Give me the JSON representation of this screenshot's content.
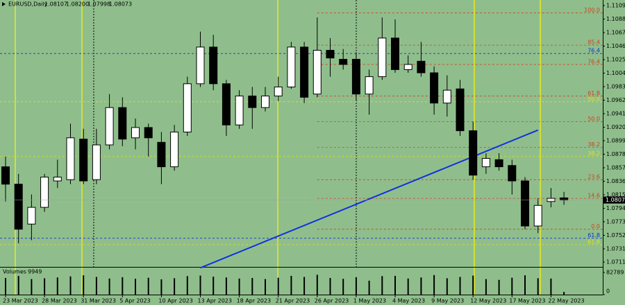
{
  "header": {
    "symbol": "EURUSD,Daily",
    "values": [
      "1.08107",
      "1.08200",
      "1.07998",
      "1.08073"
    ]
  },
  "chart_data": {
    "type": "candlestick",
    "categories": [
      "23 Mar 2023",
      null,
      null,
      "28 Mar 2023",
      null,
      null,
      "31 Mar 2023",
      null,
      null,
      "5 Apr 2023",
      null,
      null,
      "10 Apr 2023",
      null,
      null,
      "13 Apr 2023",
      null,
      null,
      "18 Apr 2023",
      null,
      null,
      "21 Apr 2023",
      null,
      null,
      "26 Apr 2023",
      null,
      null,
      "1 May 2023",
      null,
      null,
      "4 May 2023",
      null,
      null,
      "9 May 2023",
      null,
      null,
      "12 May 2023",
      null,
      null,
      "17 May 2023",
      null,
      null,
      "22 May 2023",
      null
    ],
    "ohlc": [
      [
        1.0859,
        1.0875,
        1.0805,
        1.0832
      ],
      [
        1.0832,
        1.0848,
        1.074,
        1.0762
      ],
      [
        1.077,
        1.0816,
        1.0745,
        1.0796
      ],
      [
        1.0796,
        1.0848,
        1.0789,
        1.0843
      ],
      [
        1.0837,
        1.087,
        1.0826,
        1.0843
      ],
      [
        1.0839,
        1.0926,
        1.0832,
        1.0904
      ],
      [
        1.0902,
        1.0918,
        1.0832,
        1.0837
      ],
      [
        1.0839,
        1.0918,
        1.0832,
        1.0893
      ],
      [
        1.0893,
        1.0972,
        1.0886,
        1.0951
      ],
      [
        1.0951,
        1.0967,
        1.0891,
        1.0902
      ],
      [
        1.0904,
        1.0934,
        1.0886,
        1.092
      ],
      [
        1.092,
        1.0926,
        1.0875,
        1.0904
      ],
      [
        1.0897,
        1.0913,
        1.0832,
        1.0859
      ],
      [
        1.0859,
        1.0924,
        1.0853,
        1.0913
      ],
      [
        1.0913,
        1.0999,
        1.0907,
        1.0988
      ],
      [
        1.0988,
        1.1069,
        1.0983,
        1.1045
      ],
      [
        1.1045,
        1.1064,
        1.0978,
        1.0988
      ],
      [
        1.0988,
        1.0994,
        1.0907,
        1.0924
      ],
      [
        1.0924,
        1.0978,
        1.0918,
        1.0969
      ],
      [
        1.0969,
        1.0983,
        1.0918,
        1.0951
      ],
      [
        1.0951,
        1.0983,
        1.0945,
        1.0969
      ],
      [
        1.0969,
        1.0999,
        1.0961,
        1.0983
      ],
      [
        1.0983,
        1.1053,
        1.098,
        1.1045
      ],
      [
        1.1045,
        1.1053,
        1.0958,
        1.0967
      ],
      [
        1.0972,
        1.1091,
        1.0967,
        1.104
      ],
      [
        1.104,
        1.1059,
        1.0999,
        1.1028
      ],
      [
        1.1026,
        1.1042,
        1.101,
        1.1018
      ],
      [
        1.1026,
        1.1037,
        1.0961,
        1.0972
      ],
      [
        1.0972,
        1.101,
        1.094,
        1.0999
      ],
      [
        1.0999,
        1.1091,
        1.0994,
        1.1059
      ],
      [
        1.1059,
        1.1088,
        1.1005,
        1.101
      ],
      [
        1.101,
        1.1032,
        1.1005,
        1.1018
      ],
      [
        1.1023,
        1.1053,
        1.0999,
        1.1005
      ],
      [
        1.1005,
        1.1015,
        1.094,
        1.0958
      ],
      [
        1.0958,
        1.1001,
        1.0937,
        1.0978
      ],
      [
        1.098,
        1.0994,
        1.0907,
        1.0915
      ],
      [
        1.0915,
        1.0929,
        1.0839,
        1.0846
      ],
      [
        1.0859,
        1.088,
        1.0848,
        1.0872
      ],
      [
        1.087,
        1.088,
        1.0853,
        1.0859
      ],
      [
        1.0861,
        1.087,
        1.0816,
        1.0837
      ],
      [
        1.0837,
        1.0843,
        1.0762,
        1.0767
      ],
      [
        1.0767,
        1.081,
        1.0756,
        1.0799
      ],
      [
        1.0805,
        1.0826,
        1.0796,
        1.081
      ],
      [
        1.08107,
        1.082,
        1.07998,
        1.08073
      ]
    ],
    "ylim": [
      1.07035,
      1.11181
    ],
    "yticks": [
      1.11095,
      1.10885,
      1.10675,
      1.10465,
      1.10255,
      1.10045,
      1.09835,
      1.09625,
      1.09415,
      1.09205,
      1.08995,
      1.08785,
      1.08575,
      1.08365,
      1.08155,
      1.07945,
      1.07735,
      1.07525,
      1.07315,
      {
        "value": 1.0711,
        "label": "1.07110"
      }
    ],
    "levels": [
      {
        "label": "100.0",
        "price": 1.1098,
        "color": "#d04020"
      },
      {
        "label": "85.4",
        "price": 1.1048,
        "color": "#d04020"
      },
      {
        "label": "76.4",
        "price": 1.1035,
        "color": "#1030d0"
      },
      {
        "label": "76.4",
        "price": 1.1018,
        "color": "#d04020"
      },
      {
        "label": "61.8",
        "price": 1.0969,
        "color": "#d04020"
      },
      {
        "label": "50.0",
        "price": 1.096,
        "color": "#e0e020"
      },
      {
        "label": "50.0",
        "price": 1.0929,
        "color": "#d04020"
      },
      {
        "label": "38.2",
        "price": 1.0889,
        "color": "#d04020"
      },
      {
        "label": "38.2",
        "price": 1.0875,
        "color": "#e0e020"
      },
      {
        "label": "23.6",
        "price": 1.0839,
        "color": "#d04020"
      },
      {
        "label": "14.6",
        "price": 1.081,
        "color": "#d04020"
      },
      {
        "label": "0.0",
        "price": 1.0762,
        "color": "#d04020"
      },
      {
        "label": "61.8",
        "price": 1.0748,
        "color": "#1030d0"
      },
      {
        "label": "61.8",
        "price": 1.0738,
        "color": "#e0e020"
      }
    ],
    "trendline": {
      "x": [
        15,
        41
      ],
      "y": [
        1.0702,
        1.0916
      ],
      "color": "#1030e0"
    },
    "volume": {
      "label": "Volumes",
      "ylim": [
        0,
        82789
      ],
      "yticks": [
        82789,
        0
      ],
      "values": [
        62000,
        70000,
        58000,
        61000,
        64000,
        68000,
        72000,
        66000,
        60000,
        65000,
        59000,
        63000,
        57000,
        61000,
        69000,
        71000,
        67000,
        64000,
        60000,
        62000,
        58000,
        63000,
        70000,
        66000,
        74000,
        62000,
        59000,
        65000,
        52000,
        69000,
        70000,
        60000,
        64000,
        73000,
        61000,
        66000,
        71000,
        58000,
        55000,
        63000,
        72000,
        61000,
        60000,
        9949
      ]
    }
  }
}
